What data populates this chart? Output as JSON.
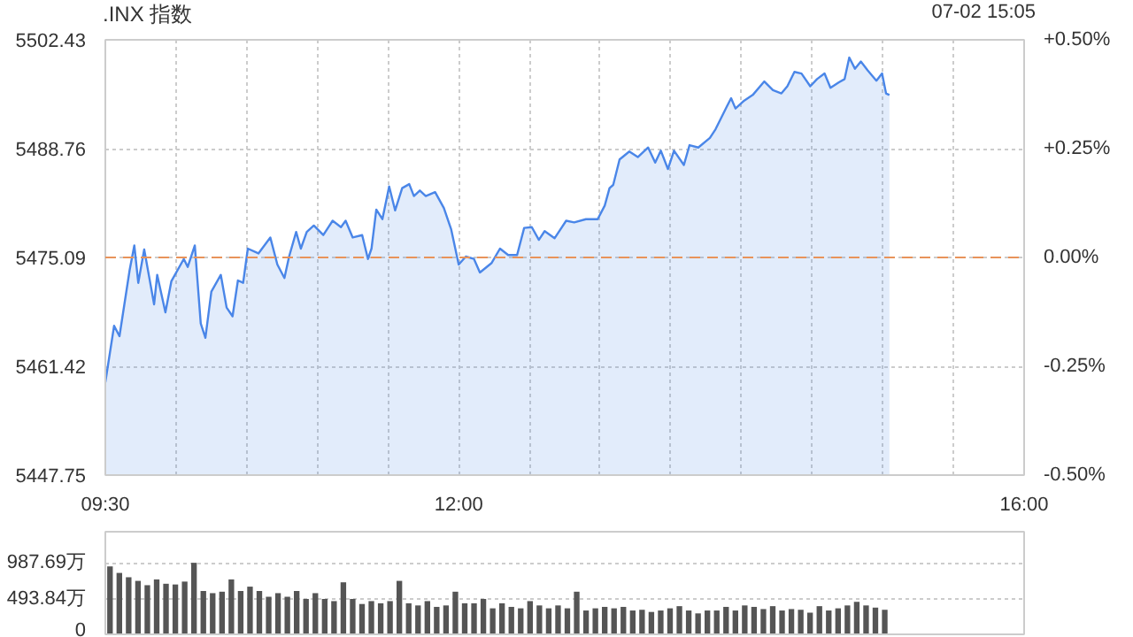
{
  "chart_data": [
    {
      "type": "area",
      "title": ".INX 指数",
      "annotations": [
        "07-02 15:05"
      ],
      "x": [
        9.5,
        9.562,
        9.6,
        9.672,
        9.705,
        9.733,
        9.775,
        9.845,
        9.867,
        9.925,
        9.967,
        10.055,
        10.083,
        10.133,
        10.175,
        10.208,
        10.25,
        10.317,
        10.358,
        10.4,
        10.438,
        10.475,
        10.508,
        10.583,
        10.667,
        10.717,
        10.767,
        10.8,
        10.85,
        10.883,
        10.925,
        10.975,
        11.042,
        11.108,
        11.167,
        11.2,
        11.25,
        11.317,
        11.358,
        11.383,
        11.417,
        11.46,
        11.508,
        11.55,
        11.6,
        11.65,
        11.683,
        11.725,
        11.767,
        11.833,
        11.895,
        11.947,
        12.0,
        12.05,
        12.108,
        12.15,
        12.233,
        12.292,
        12.35,
        12.413,
        12.463,
        12.517,
        12.567,
        12.608,
        12.678,
        12.76,
        12.817,
        12.9,
        12.983,
        13.033,
        13.067,
        13.093,
        13.138,
        13.207,
        13.267,
        13.34,
        13.39,
        13.43,
        13.48,
        13.523,
        13.593,
        13.633,
        13.695,
        13.777,
        13.817,
        13.898,
        13.927,
        13.958,
        14.02,
        14.08,
        14.162,
        14.223,
        14.283,
        14.325,
        14.375,
        14.425,
        14.487,
        14.535,
        14.588,
        14.63,
        14.69,
        14.73,
        14.763,
        14.803,
        14.845,
        14.893,
        14.955,
        14.995,
        15.023,
        15.047
      ],
      "series": [
        {
          "color": "#4a86e8",
          "values": [
            5459.4,
            5466.5,
            5465.2,
            5473.5,
            5476.6,
            5471.9,
            5476.1,
            5469.2,
            5472.9,
            5468.2,
            5472.1,
            5474.9,
            5473.9,
            5476.6,
            5466.8,
            5465.0,
            5470.8,
            5472.9,
            5468.8,
            5467.7,
            5472.2,
            5471.9,
            5476.2,
            5475.6,
            5477.6,
            5474.2,
            5472.5,
            5475.2,
            5478.3,
            5476.2,
            5478.3,
            5479.1,
            5477.9,
            5479.7,
            5478.9,
            5479.7,
            5477.6,
            5477.9,
            5474.9,
            5476.2,
            5481.1,
            5479.9,
            5484.0,
            5481.0,
            5483.8,
            5484.3,
            5482.8,
            5483.5,
            5482.8,
            5483.3,
            5481.3,
            5478.6,
            5474.2,
            5475.2,
            5474.9,
            5473.2,
            5474.4,
            5476.2,
            5475.4,
            5475.4,
            5478.8,
            5478.9,
            5477.3,
            5478.4,
            5477.5,
            5479.7,
            5479.5,
            5479.9,
            5479.9,
            5481.6,
            5483.8,
            5484.2,
            5487.4,
            5488.4,
            5487.7,
            5488.9,
            5487.0,
            5488.5,
            5486.2,
            5488.5,
            5486.7,
            5489.2,
            5488.9,
            5490.1,
            5491.2,
            5494.1,
            5495.1,
            5493.8,
            5494.8,
            5495.5,
            5497.2,
            5496.1,
            5495.7,
            5496.6,
            5498.4,
            5498.2,
            5496.6,
            5497.5,
            5498.2,
            5496.4,
            5497.1,
            5497.5,
            5500.2,
            5498.8,
            5499.7,
            5498.6,
            5497.3,
            5498.2,
            5495.7,
            5495.5
          ]
        }
      ],
      "xlim": [
        9.5,
        16
      ],
      "ylim": [
        5447.75,
        5502.43
      ],
      "xticks": [
        {
          "value": 9.5,
          "label": "09:30"
        },
        {
          "value": 10,
          "label": null
        },
        {
          "value": 10.5,
          "label": null
        },
        {
          "value": 11,
          "label": null
        },
        {
          "value": 11.5,
          "label": null
        },
        {
          "value": 12,
          "label": "12:00"
        },
        {
          "value": 12.5,
          "label": null
        },
        {
          "value": 13,
          "label": null
        },
        {
          "value": 13.5,
          "label": null
        },
        {
          "value": 14,
          "label": null
        },
        {
          "value": 14.5,
          "label": null
        },
        {
          "value": 15,
          "label": null
        },
        {
          "value": 15.5,
          "label": null
        },
        {
          "value": 16,
          "label": "16:00"
        }
      ],
      "yticks": [
        5447.75,
        5461.42,
        5475.09,
        5488.76,
        5502.43
      ],
      "y2lim": [
        -0.5,
        0.5
      ],
      "y2ticks": [
        {
          "value": -0.5,
          "label": "-0.50%"
        },
        {
          "value": -0.25,
          "label": "-0.25%"
        },
        {
          "value": 0,
          "label": "0.00%"
        },
        {
          "value": 0.25,
          "label": "+0.25%"
        },
        {
          "value": 0.5,
          "label": "+0.50%"
        }
      ],
      "ref_lines": [
        {
          "axis": "y",
          "value": 5475.09,
          "color": "#e8935a",
          "line_style": "dashed"
        }
      ],
      "grid": true
    },
    {
      "type": "bar",
      "color": "#555555",
      "tick_labels": "y",
      "grid": "y",
      "categories": [
        null,
        null,
        null,
        null,
        null,
        null,
        null,
        null,
        null,
        null,
        null,
        null,
        null,
        null,
        null,
        null,
        null,
        null,
        null,
        null,
        null,
        null,
        null,
        null,
        null,
        null,
        null,
        null,
        null,
        null,
        null,
        null,
        null,
        null,
        null,
        null,
        null,
        null,
        null,
        null,
        null,
        null,
        null,
        null,
        null,
        null,
        null,
        null,
        null,
        null,
        null,
        null,
        null,
        null,
        null,
        null,
        null,
        null,
        null,
        null,
        null,
        null,
        null,
        null,
        null,
        null,
        null,
        null,
        null,
        null,
        null,
        null,
        null,
        null,
        null,
        null,
        null,
        null,
        null,
        null,
        null,
        null,
        null,
        null
      ],
      "values": [
        940,
        850,
        790,
        740,
        680,
        760,
        700,
        690,
        730,
        990,
        600,
        570,
        590,
        760,
        600,
        660,
        600,
        520,
        570,
        520,
        600,
        490,
        570,
        490,
        460,
        720,
        490,
        420,
        460,
        430,
        460,
        740,
        430,
        400,
        460,
        380,
        400,
        590,
        430,
        430,
        490,
        360,
        430,
        380,
        360,
        460,
        400,
        360,
        400,
        360,
        590,
        330,
        360,
        380,
        360,
        380,
        330,
        340,
        310,
        330,
        360,
        390,
        330,
        290,
        330,
        330,
        380,
        330,
        400,
        380,
        350,
        390,
        330,
        350,
        340,
        300,
        390,
        330,
        360,
        400,
        450,
        400,
        370,
        340
      ],
      "ylim": [
        0,
        1420
      ],
      "yticks": [
        0,
        {
          "value": 493.84,
          "label": "493.84万"
        },
        {
          "value": 987.69,
          "label": "987.69万"
        }
      ]
    }
  ]
}
